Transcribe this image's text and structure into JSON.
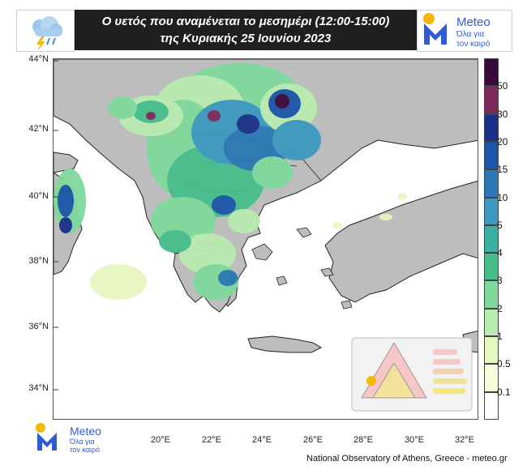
{
  "header": {
    "line1": "Ο υετός που αναμένεται το μεσημέρι (12:00-15:00)",
    "line2": "της Κυριακής 25 Ιουνίου 2023"
  },
  "brand": {
    "name": "Meteo",
    "tagline_1": "Όλα για",
    "tagline_2": "τον καιρό",
    "accent": "#2f5bd6",
    "sun_color": "#f5b800"
  },
  "icons": {
    "weather": "rain-cloud-lightning-icon",
    "logo": "meteo-logo-icon"
  },
  "axes": {
    "lat_labels": [
      "44°N",
      "42°N",
      "40°N",
      "38°N",
      "36°N",
      "34°N"
    ],
    "lon_labels": [
      "20°E",
      "22°E",
      "24°E",
      "26°E",
      "28°E",
      "30°E",
      "32°E"
    ]
  },
  "legend": {
    "labels": [
      "50",
      "30",
      "20",
      "15",
      "10",
      "5",
      "4",
      "3",
      "2",
      "1",
      "0.5",
      "0.1"
    ],
    "colors": [
      "#3a0a3a",
      "#7b2a5a",
      "#1a2f8a",
      "#1c56a8",
      "#2a78b5",
      "#3c9ac0",
      "#3bb0a0",
      "#46be8a",
      "#7ed99b",
      "#b9ecb0",
      "#e6f6bf",
      "#f7fbd8",
      "#ffffff"
    ]
  },
  "map_colors": {
    "sea": "#ffffff",
    "land": "#bdbdbd",
    "border": "#222222"
  },
  "credit": "National Observatory of Athens, Greece - meteo.gr"
}
